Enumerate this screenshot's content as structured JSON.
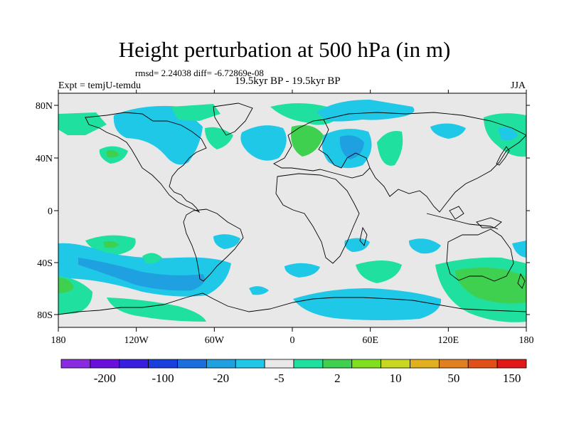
{
  "title": "Height perturbation at 500 hPa (in m)",
  "stats_text": "rmsd= 2.24038 diff= -6.72869e-08",
  "period_text": "19.5kyr BP - 19.5kyr BP",
  "expt_text": "Expt = temjU-temdu",
  "season_text": "JJA",
  "axes": {
    "x_ticks": [
      "180",
      "120W",
      "60W",
      "0",
      "60E",
      "120E",
      "180"
    ],
    "y_ticks": [
      "80N",
      "40N",
      "0",
      "40S",
      "80S"
    ]
  },
  "colorbar": {
    "labels": [
      "-200",
      "-100",
      "-20",
      "-5",
      "2",
      "10",
      "50",
      "150"
    ],
    "colors": [
      "#8a2be2",
      "#6a10dc",
      "#3a1ee0",
      "#1940dc",
      "#1a6ee0",
      "#1fa0e0",
      "#1fc8e6",
      "#e8e8e8",
      "#20e0a0",
      "#40d050",
      "#80e020",
      "#c8d820",
      "#e0b020",
      "#e08020",
      "#e05018",
      "#e01818"
    ]
  },
  "colors": {
    "background": "#e8e8e8",
    "light_blue": "#1fc8e6",
    "mid_blue": "#1fa0e0",
    "teal_green": "#20e0a0",
    "green": "#40d050"
  }
}
